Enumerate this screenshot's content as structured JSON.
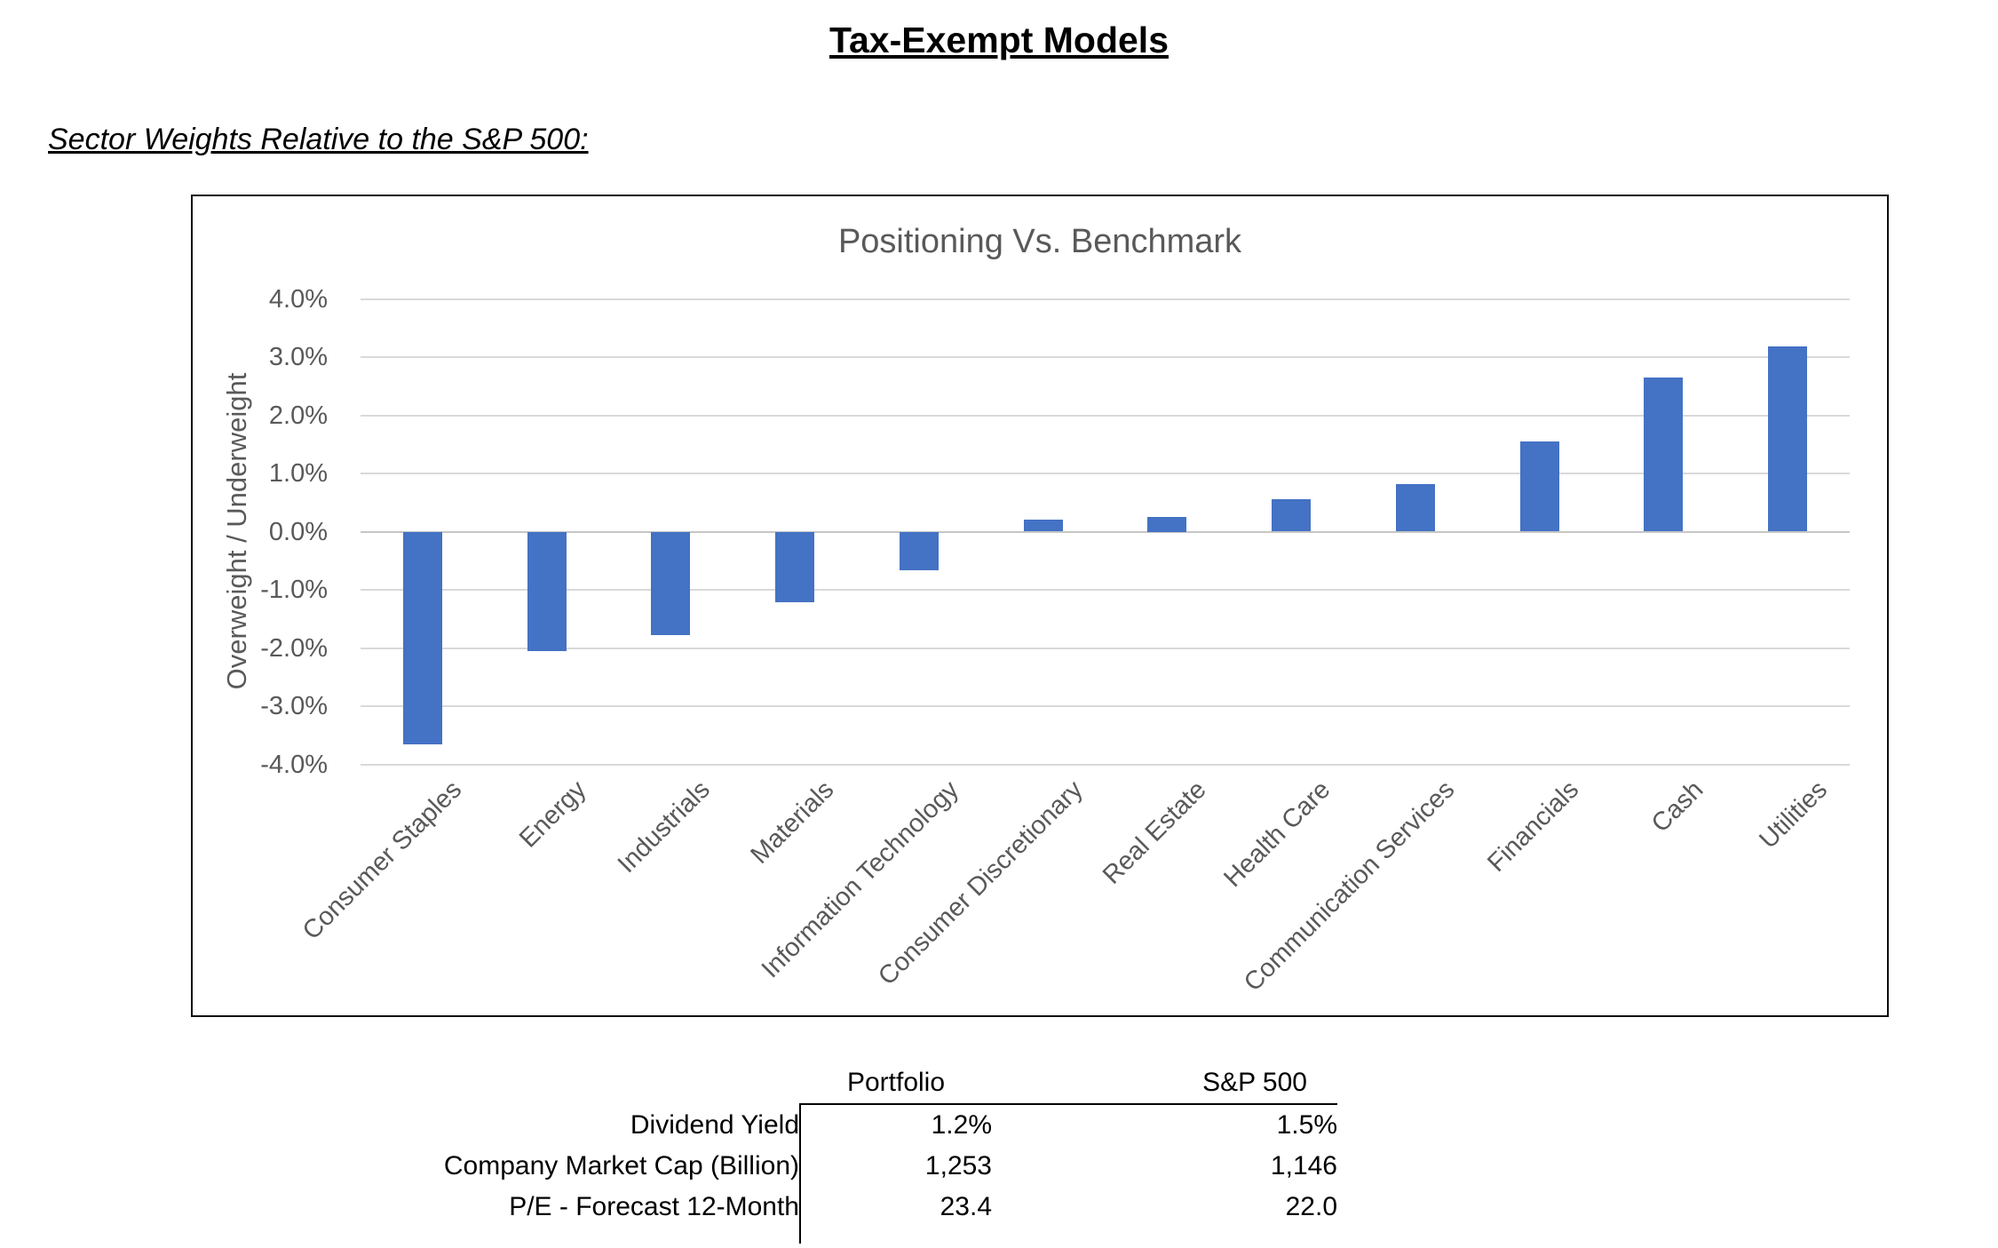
{
  "page": {
    "title": "Tax-Exempt Models",
    "subtitle": "Sector Weights Relative to the S&P 500:"
  },
  "chart_data": {
    "type": "bar",
    "title": "Positioning Vs. Benchmark",
    "xlabel": "",
    "ylabel": "Overweight / Underweight",
    "categories": [
      "Consumer Staples",
      "Energy",
      "Industrials",
      "Materials",
      "Information Technology",
      "Consumer Discretionary",
      "Real Estate",
      "Health Care",
      "Communication Services",
      "Financials",
      "Cash",
      "Utilities"
    ],
    "values": [
      -3.65,
      -2.05,
      -1.78,
      -1.22,
      -0.67,
      0.2,
      0.25,
      0.55,
      0.82,
      1.55,
      2.65,
      3.18
    ],
    "unit": "%",
    "ylim": [
      -4.0,
      4.0
    ],
    "ytick_step": 1.0,
    "grid": true,
    "legend": "none",
    "bar_color": "#4472C4",
    "gridline_color": "#D9D9D9",
    "zero_line_color": "#C6C6C6",
    "axis_text_color": "#595959"
  },
  "table": {
    "headers": [
      "",
      "Portfolio",
      "S&P 500"
    ],
    "rows": [
      {
        "label": "Dividend Yield",
        "portfolio": "1.2%",
        "sp500": "1.5%"
      },
      {
        "label": "Company Market Cap (Billion)",
        "portfolio": "1,253",
        "sp500": "1,146"
      },
      {
        "label": "P/E - Forecast 12-Month",
        "portfolio": "23.4",
        "sp500": "22.0"
      }
    ]
  }
}
